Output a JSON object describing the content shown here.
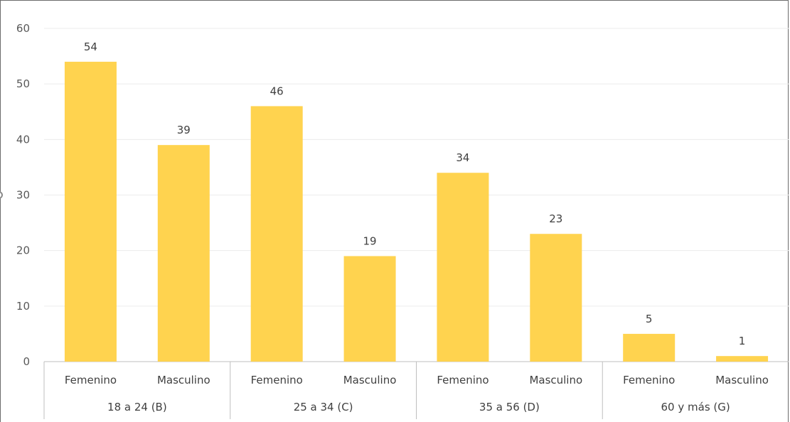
{
  "chart_data": {
    "type": "bar",
    "title": "",
    "xlabel": "",
    "ylabel": "",
    "ylim": [
      0,
      60
    ],
    "yticks": [
      0,
      10,
      20,
      30,
      40,
      50,
      60
    ],
    "grid": true,
    "legend": "none",
    "bar_color": "#ffd34f",
    "groups": [
      {
        "label": "18 a 24 (B)",
        "categories": [
          "Femenino",
          "Masculino"
        ],
        "values": [
          54,
          39
        ]
      },
      {
        "label": "25 a 34 (C)",
        "categories": [
          "Femenino",
          "Masculino"
        ],
        "values": [
          46,
          19
        ]
      },
      {
        "label": "35 a 56 (D)",
        "categories": [
          "Femenino",
          "Masculino"
        ],
        "values": [
          34,
          23
        ]
      },
      {
        "label": "60 y más (G)",
        "categories": [
          "Femenino",
          "Masculino"
        ],
        "values": [
          5,
          1
        ]
      }
    ]
  }
}
